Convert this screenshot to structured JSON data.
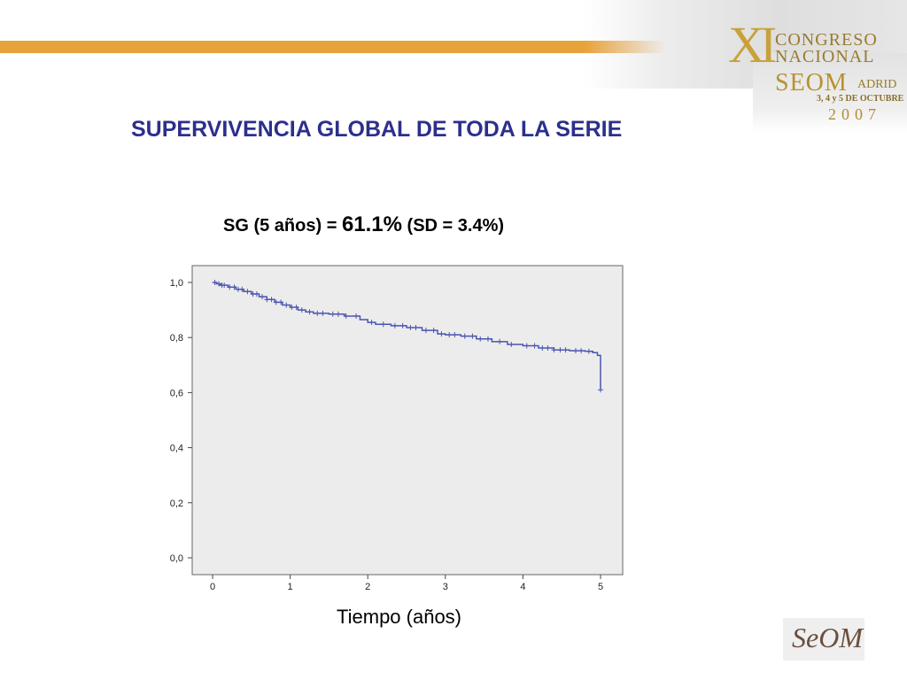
{
  "banner": {
    "xi": "XI",
    "line1": "CONGRESO",
    "line2": "NACIONAL",
    "seom": "SEOM",
    "madrid": "ADRID",
    "dates": "3, 4 y 5 DE OCTUBRE",
    "year": "2007"
  },
  "slide": {
    "title": "SUPERVIVENCIA GLOBAL DE TODA LA SERIE",
    "subtitle_a": "SG (5 años) = ",
    "subtitle_b": "61.1%",
    "subtitle_c": " (SD = 3.4%)"
  },
  "logo": {
    "text": "SeOM"
  },
  "colors": {
    "accent_bar": "#e8a23a",
    "title": "#2c2f8c",
    "curve": "#4a55b0",
    "plot_bg": "#ececec"
  },
  "chart_data": {
    "type": "line",
    "title": "",
    "xlabel": "Tiempo (años)",
    "ylabel": "",
    "xlim": [
      0,
      5
    ],
    "ylim": [
      0,
      1
    ],
    "x_ticks": [
      0,
      1,
      2,
      3,
      4,
      5
    ],
    "y_ticks": [
      "0,0",
      "0,2",
      "0,4",
      "0,6",
      "0,8",
      "1,0"
    ],
    "y_tick_values": [
      0,
      0.2,
      0.4,
      0.6,
      0.8,
      1.0
    ],
    "step": true,
    "grid": false,
    "series": [
      {
        "points": [
          [
            0.0,
            1.0
          ],
          [
            0.05,
            0.995
          ],
          [
            0.1,
            0.99
          ],
          [
            0.2,
            0.983
          ],
          [
            0.3,
            0.975
          ],
          [
            0.4,
            0.967
          ],
          [
            0.5,
            0.958
          ],
          [
            0.6,
            0.948
          ],
          [
            0.7,
            0.938
          ],
          [
            0.8,
            0.928
          ],
          [
            0.9,
            0.918
          ],
          [
            1.0,
            0.91
          ],
          [
            1.1,
            0.9
          ],
          [
            1.2,
            0.893
          ],
          [
            1.3,
            0.888
          ],
          [
            1.5,
            0.885
          ],
          [
            1.7,
            0.878
          ],
          [
            1.9,
            0.865
          ],
          [
            2.0,
            0.855
          ],
          [
            2.1,
            0.848
          ],
          [
            2.3,
            0.843
          ],
          [
            2.5,
            0.836
          ],
          [
            2.7,
            0.826
          ],
          [
            2.9,
            0.813
          ],
          [
            3.0,
            0.81
          ],
          [
            3.2,
            0.805
          ],
          [
            3.4,
            0.795
          ],
          [
            3.6,
            0.785
          ],
          [
            3.8,
            0.775
          ],
          [
            4.0,
            0.77
          ],
          [
            4.2,
            0.762
          ],
          [
            4.4,
            0.755
          ],
          [
            4.6,
            0.752
          ],
          [
            4.8,
            0.75
          ],
          [
            4.9,
            0.745
          ],
          [
            4.96,
            0.735
          ],
          [
            5.0,
            0.61
          ]
        ],
        "censor_x": [
          0.03,
          0.08,
          0.12,
          0.15,
          0.22,
          0.28,
          0.33,
          0.38,
          0.45,
          0.52,
          0.57,
          0.64,
          0.7,
          0.76,
          0.82,
          0.88,
          0.95,
          1.02,
          1.08,
          1.15,
          1.25,
          1.35,
          1.42,
          1.55,
          1.62,
          1.72,
          1.85,
          2.05,
          2.2,
          2.35,
          2.45,
          2.55,
          2.62,
          2.75,
          2.85,
          2.95,
          3.05,
          3.12,
          3.25,
          3.35,
          3.45,
          3.55,
          3.7,
          3.85,
          4.05,
          4.15,
          4.25,
          4.32,
          4.4,
          4.48,
          4.55,
          4.68,
          4.75,
          4.85,
          5.0
        ]
      }
    ]
  }
}
